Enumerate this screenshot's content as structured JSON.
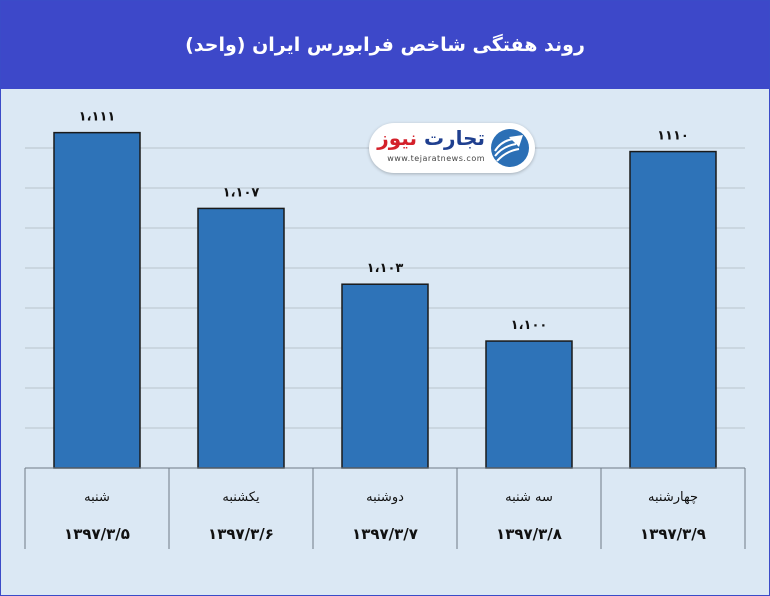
{
  "header": {
    "title": "روند هفتگی شاخص فرابورس ایران (واحد)"
  },
  "logo": {
    "text_part_a": "تجارت",
    "text_part_b": "نیوز",
    "subtext": "www.tejaratnews.com"
  },
  "colors": {
    "header_bg": "#3d48c9",
    "plot_bg": "#dbe8f4",
    "bar_fill": "#2e73b8",
    "bar_stroke": "#1a1a1a",
    "logo_red": "#d4202a",
    "logo_blue": "#1f3f8f"
  },
  "chart_data": {
    "type": "bar",
    "categories": [
      "شنبه",
      "یکشنبه",
      "دوشنبه",
      "سه شنبه",
      "چهارشنبه"
    ],
    "dates": [
      "۱۳۹۷/۳/۵",
      "۱۳۹۷/۳/۶",
      "۱۳۹۷/۳/۷",
      "۱۳۹۷/۳/۸",
      "۱۳۹۷/۳/۹"
    ],
    "values": [
      1111,
      1107,
      1103,
      1100,
      1110
    ],
    "value_labels": [
      "۱،۱۱۱",
      "۱،۱۰۷",
      "۱،۱۰۳",
      "۱،۱۰۰",
      "۱۱۱۰"
    ],
    "ylim": [
      1093.3,
      1112.3
    ],
    "grid": true,
    "legend": "none"
  }
}
